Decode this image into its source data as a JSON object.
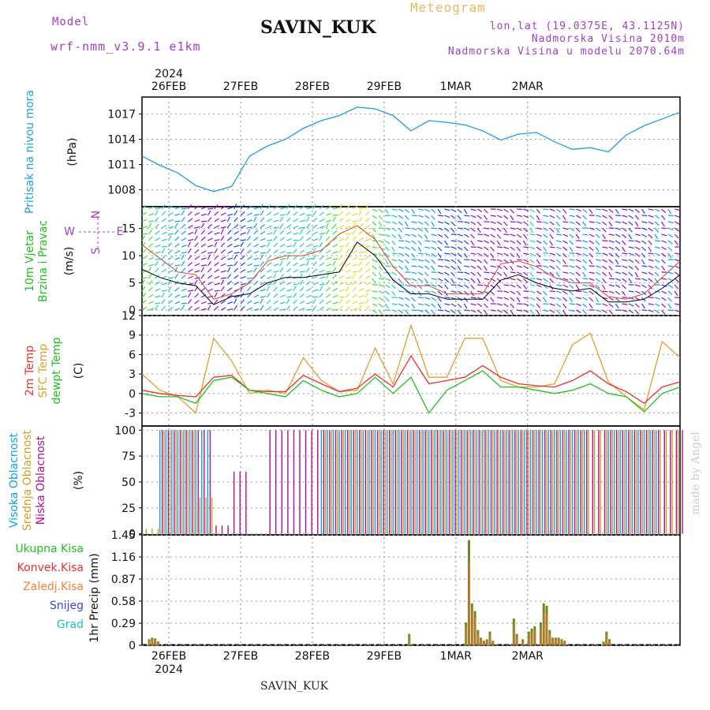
{
  "header": {
    "model_label": "Model",
    "model_name": "wrf-nmm_v3.9.1 e1km",
    "station": "SAVIN_KUK",
    "meteogram": "Meteogram",
    "lonlat": "lon,lat (19.0375E, 43.1125N)",
    "elevation": "Nadmorska Visina 2010m",
    "model_elevation": "Nadmorska Visina u modelu 2070.64m",
    "year": "2024",
    "bottom_station": "SAVIN_KUK",
    "watermark": "made by Angel"
  },
  "colors": {
    "pressure": "#1f9fe0",
    "temp2m": "#e83030",
    "sfc": "#e0a030",
    "dew": "#20c020",
    "high_cloud": "#10a0f0",
    "mid_cloud": "#d0a020",
    "low_cloud": "#b01090",
    "purple_text": "#a040c0",
    "orange_text": "#e8b860"
  },
  "x_axis": {
    "tick_labels": [
      "26FEB",
      "27FEB",
      "28FEB",
      "29FEB",
      "1MAR",
      "2MAR"
    ],
    "year_label": "2024"
  },
  "panels": {
    "pressure": {
      "labels": [
        {
          "text": "Pritisak na nivou mora",
          "color": "#1f9fe0"
        }
      ],
      "unit": "(hPa)",
      "yticks": [
        "1008",
        "1011",
        "1014",
        "1017"
      ]
    },
    "wind": {
      "labels": [
        {
          "text": "10m Vjetar",
          "color": "#20c020"
        },
        {
          "text": "Brzina i Pravac",
          "color": "#20c020"
        }
      ],
      "unit": "(m/s)",
      "yticks": [
        "0",
        "5",
        "10",
        "15"
      ],
      "compass": {
        "n": "N",
        "e": "E",
        "w": "W",
        "s": "S"
      }
    },
    "temperature": {
      "labels": [
        {
          "text": "2m Temp",
          "color": "#e83030"
        },
        {
          "text": "SFC Temp",
          "color": "#e0a030"
        },
        {
          "text": "dewpt Temp",
          "color": "#20c020"
        }
      ],
      "unit": "(C)",
      "yticks": [
        "-3",
        "0",
        "3",
        "6",
        "9",
        "12"
      ]
    },
    "cloud": {
      "labels": [
        {
          "text": "Visoka Oblacnost",
          "color": "#10a0f0"
        },
        {
          "text": "Srednja Oblacnost",
          "color": "#d0a020"
        },
        {
          "text": "Niska Oblacnost",
          "color": "#b01090"
        }
      ],
      "unit": "(%)",
      "yticks": [
        "0",
        "25",
        "50",
        "75",
        "100"
      ]
    },
    "precip": {
      "legend": [
        {
          "text": "Ukupna Kisa",
          "color": "#20c020"
        },
        {
          "text": "Konvek.Kisa",
          "color": "#e83030"
        },
        {
          "text": "Zaledj.Kisa",
          "color": "#f08040"
        },
        {
          "text": "Snijeg",
          "color": "#4040e0"
        },
        {
          "text": "Grad",
          "color": "#20c0c0"
        }
      ],
      "unit": "1hr Precip (mm)",
      "yticks": [
        "0",
        "0.29",
        "0.58",
        "0.87",
        "1.16",
        "1.45"
      ]
    }
  },
  "chart_data": [
    {
      "type": "line",
      "ylabel": "Pritisak na nivou mora (hPa)",
      "ylim": [
        1006,
        1019
      ],
      "x_hours": [
        0,
        6,
        12,
        18,
        24,
        30,
        36,
        42,
        48,
        54,
        60,
        66,
        72,
        78,
        84,
        90,
        96,
        102,
        108,
        114,
        120,
        126,
        132,
        138,
        144,
        150,
        156,
        162,
        168,
        174,
        180
      ],
      "series": [
        {
          "name": "Pritisak na nivou mora",
          "values": [
            1012.0,
            1010.9,
            1010.0,
            1008.5,
            1007.8,
            1008.4,
            1012.0,
            1013.2,
            1014.0,
            1015.3,
            1016.2,
            1016.8,
            1017.8,
            1017.6,
            1016.8,
            1015.0,
            1016.2,
            1016.0,
            1015.7,
            1015.0,
            1013.9,
            1014.6,
            1014.8,
            1013.7,
            1012.8,
            1013.0,
            1012.5,
            1014.5,
            1015.6,
            1016.4,
            1017.2
          ]
        }
      ]
    },
    {
      "type": "line",
      "ylabel": "10m Vjetar Brzina i Pravac (m/s)",
      "ylim": [
        -1,
        19
      ],
      "x_hours": [
        0,
        6,
        12,
        18,
        24,
        30,
        36,
        42,
        48,
        54,
        60,
        66,
        72,
        78,
        84,
        90,
        96,
        102,
        108,
        114,
        120,
        126,
        132,
        138,
        144,
        150,
        156,
        162,
        168,
        174,
        180
      ],
      "series": [
        {
          "values": [
            7.5,
            6.0,
            5.0,
            4.5,
            1.0,
            2.5,
            3.0,
            5.0,
            6.0,
            6.0,
            6.5,
            7.0,
            12.5,
            10.0,
            5.5,
            3.0,
            3.0,
            2.0,
            2.0,
            2.0,
            5.5,
            6.5,
            5.0,
            4.0,
            3.5,
            4.0,
            1.5,
            1.5,
            2.0,
            4.0,
            6.5
          ]
        },
        {
          "values": [
            12.0,
            9.5,
            7.0,
            6.5,
            2.0,
            3.0,
            5.0,
            9.0,
            10.0,
            10.0,
            11.0,
            14.0,
            15.5,
            13.0,
            8.0,
            4.5,
            4.5,
            3.0,
            3.0,
            3.0,
            8.5,
            9.0,
            8.0,
            6.0,
            5.0,
            5.0,
            2.5,
            2.0,
            3.0,
            6.0,
            9.0
          ]
        }
      ]
    },
    {
      "type": "line",
      "ylabel": "(C)",
      "ylim": [
        -5,
        12
      ],
      "x_hours": [
        0,
        6,
        12,
        18,
        24,
        30,
        36,
        42,
        48,
        54,
        60,
        66,
        72,
        78,
        84,
        90,
        96,
        102,
        108,
        114,
        120,
        126,
        132,
        138,
        144,
        150,
        156,
        162,
        168,
        174,
        180
      ],
      "series": [
        {
          "name": "2m Temp",
          "values": [
            0.5,
            0.0,
            -0.3,
            -0.5,
            2.5,
            2.8,
            0.5,
            0.3,
            0.3,
            2.8,
            1.5,
            0.3,
            0.8,
            3.0,
            1.0,
            5.8,
            1.5,
            2.0,
            2.5,
            4.3,
            2.5,
            1.5,
            1.2,
            1.0,
            2.0,
            3.5,
            1.5,
            0.3,
            -1.5,
            1.0,
            1.8
          ]
        },
        {
          "name": "SFC Temp",
          "values": [
            3.0,
            0.5,
            -0.5,
            -3.0,
            8.5,
            5.0,
            0.0,
            0.5,
            0.0,
            5.5,
            2.0,
            0.3,
            0.5,
            7.0,
            1.5,
            10.5,
            2.5,
            2.5,
            8.5,
            8.5,
            2.0,
            1.0,
            1.0,
            1.5,
            7.5,
            9.3,
            1.8,
            -0.5,
            -2.5,
            8.0,
            5.5
          ]
        },
        {
          "name": "dewpt Temp",
          "values": [
            0.0,
            -0.5,
            -0.5,
            -1.5,
            2.0,
            2.5,
            0.5,
            0.0,
            -0.5,
            2.0,
            0.5,
            -0.5,
            0.0,
            2.5,
            0.0,
            2.5,
            -3.0,
            0.5,
            2.0,
            3.5,
            1.0,
            1.0,
            0.5,
            0.0,
            0.5,
            1.5,
            0.0,
            -0.5,
            -2.8,
            0.0,
            1.0
          ]
        }
      ]
    },
    {
      "type": "bar",
      "ylabel": "(%)",
      "ylim": [
        0,
        100
      ],
      "x_hours": [
        0,
        6,
        12,
        18,
        24,
        30,
        36,
        42,
        48,
        54,
        60,
        66,
        72,
        78,
        84,
        90,
        96,
        102,
        108,
        114,
        120,
        126,
        132,
        138,
        144,
        150,
        156,
        162,
        168,
        174,
        180
      ],
      "series": [
        {
          "name": "Visoka Oblacnost",
          "values": [
            0,
            100,
            100,
            100,
            0,
            0,
            0,
            0,
            0,
            0,
            100,
            100,
            100,
            100,
            100,
            100,
            100,
            100,
            100,
            100,
            100,
            100,
            100,
            100,
            100,
            0,
            100,
            100,
            100,
            0,
            0
          ]
        },
        {
          "name": "Srednja Oblacnost",
          "values": [
            5,
            100,
            100,
            35,
            0,
            0,
            0,
            0,
            0,
            0,
            100,
            100,
            100,
            100,
            100,
            100,
            100,
            100,
            100,
            100,
            100,
            100,
            100,
            100,
            100,
            100,
            100,
            100,
            100,
            100,
            30
          ]
        },
        {
          "name": "Niska Oblacnost",
          "values": [
            0,
            100,
            100,
            100,
            8,
            60,
            0,
            100,
            100,
            100,
            100,
            100,
            100,
            100,
            100,
            100,
            100,
            100,
            100,
            100,
            100,
            100,
            100,
            100,
            100,
            100,
            100,
            100,
            100,
            100,
            100
          ]
        }
      ]
    },
    {
      "type": "bar",
      "ylabel": "1hr Precip (mm)",
      "ylim": [
        0,
        1.45
      ],
      "bars": [
        {
          "h": 2,
          "v": 0.08
        },
        {
          "h": 3,
          "v": 0.1
        },
        {
          "h": 4,
          "v": 0.09
        },
        {
          "h": 5,
          "v": 0.05
        },
        {
          "h": 89,
          "v": 0.15
        },
        {
          "h": 108,
          "v": 0.3
        },
        {
          "h": 109,
          "v": 1.38
        },
        {
          "h": 110,
          "v": 0.55
        },
        {
          "h": 111,
          "v": 0.45
        },
        {
          "h": 112,
          "v": 0.2
        },
        {
          "h": 113,
          "v": 0.1
        },
        {
          "h": 114,
          "v": 0.06
        },
        {
          "h": 115,
          "v": 0.08
        },
        {
          "h": 116,
          "v": 0.18
        },
        {
          "h": 117,
          "v": 0.06
        },
        {
          "h": 124,
          "v": 0.35
        },
        {
          "h": 125,
          "v": 0.15
        },
        {
          "h": 127,
          "v": 0.08
        },
        {
          "h": 129,
          "v": 0.18
        },
        {
          "h": 130,
          "v": 0.22
        },
        {
          "h": 131,
          "v": 0.25
        },
        {
          "h": 133,
          "v": 0.3
        },
        {
          "h": 134,
          "v": 0.55
        },
        {
          "h": 135,
          "v": 0.52
        },
        {
          "h": 136,
          "v": 0.2
        },
        {
          "h": 137,
          "v": 0.1
        },
        {
          "h": 138,
          "v": 0.1
        },
        {
          "h": 139,
          "v": 0.1
        },
        {
          "h": 140,
          "v": 0.08
        },
        {
          "h": 141,
          "v": 0.06
        },
        {
          "h": 154,
          "v": 0.05
        },
        {
          "h": 155,
          "v": 0.18
        },
        {
          "h": 156,
          "v": 0.08
        }
      ]
    }
  ]
}
